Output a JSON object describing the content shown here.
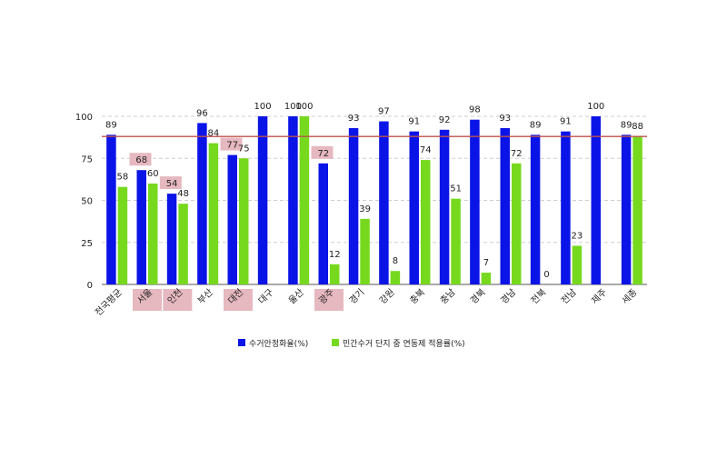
{
  "chart_data": {
    "type": "bar",
    "ylim": [
      0,
      100
    ],
    "yticks": [
      0,
      25,
      50,
      75,
      100
    ],
    "reference_line": 88,
    "categories": [
      "전국평균",
      "서울",
      "인천",
      "부산",
      "대전",
      "대구",
      "울산",
      "광주",
      "경기",
      "강원",
      "충북",
      "충남",
      "경북",
      "경남",
      "전북",
      "전남",
      "제주",
      "세종"
    ],
    "highlighted_categories": [
      "서울",
      "인천",
      "대전",
      "광주"
    ],
    "series": [
      {
        "name": "수거안정화율(%)",
        "values": [
          89,
          68,
          54,
          96,
          77,
          100,
          100,
          72,
          93,
          97,
          91,
          92,
          98,
          93,
          89,
          91,
          100,
          89
        ],
        "color": "#0b14e6"
      },
      {
        "name": "민간수거 단지 중 연동제 적용률(%)",
        "values": [
          58,
          60,
          48,
          84,
          75,
          null,
          100,
          12,
          39,
          8,
          74,
          51,
          7,
          72,
          0,
          23,
          null,
          88
        ],
        "color": "#76d91e"
      }
    ],
    "reference_line_color": "#c0504d",
    "highlight_color": "#e6b8bf",
    "grid": "horizontal dashed",
    "legend_position": "bottom-center"
  }
}
